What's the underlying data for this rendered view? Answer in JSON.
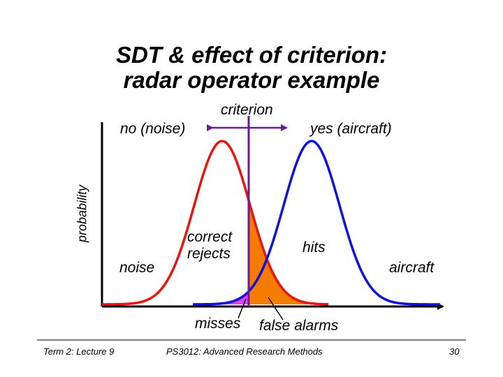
{
  "title": {
    "line1": "SDT & effect of criterion:",
    "line2": "radar operator example"
  },
  "labels": {
    "criterion": "criterion",
    "no_noise": "no (noise)",
    "yes_aircraft": "yes (aircraft)",
    "y_axis": "probability",
    "noise": "noise",
    "correct_rejects_1": "correct",
    "correct_rejects_2": "rejects",
    "hits": "hits",
    "aircraft": "aircraft",
    "misses": "misses",
    "false_alarms": "false alarms"
  },
  "footer": {
    "left": "Term 2: Lecture 9",
    "center": "PS3012: Advanced Research Methods",
    "page": "30"
  },
  "colors": {
    "noise_curve": "#e8140f",
    "signal_curve": "#1010d8",
    "criterion_line": "#6a1b9a",
    "false_alarm_fill": "#f57c00",
    "miss_fill": "#e040fb",
    "axis": "#000000"
  }
}
